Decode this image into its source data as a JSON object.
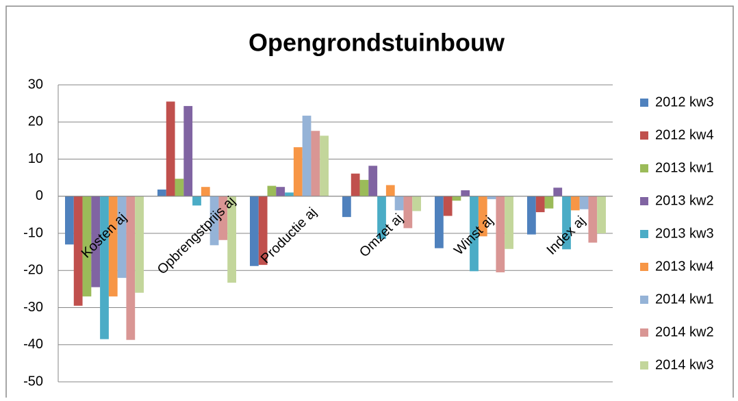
{
  "chart_data": {
    "type": "bar",
    "title": "Opengrondstuinbouw",
    "categories": [
      "Kosten aj",
      "Opbrengstprijs aj",
      "Productie aj",
      "Omzet aj",
      "Winst aj",
      "Index aj"
    ],
    "series": [
      {
        "name": "2012 kw3",
        "color": "#4f81bd",
        "values": [
          -13,
          1.8,
          -18.8,
          -5.6,
          -14,
          -10.3
        ]
      },
      {
        "name": "2012 kw4",
        "color": "#c0504d",
        "values": [
          -29.5,
          25.5,
          -18.5,
          6.1,
          -5.3,
          -4.3
        ]
      },
      {
        "name": "2013 kw1",
        "color": "#9bbb59",
        "values": [
          -27,
          4.7,
          2.8,
          4.4,
          -1.2,
          -3.3
        ]
      },
      {
        "name": "2013 kw2",
        "color": "#8064a2",
        "values": [
          -24.5,
          24.3,
          2.5,
          8.2,
          1.6,
          2.3
        ]
      },
      {
        "name": "2013 kw3",
        "color": "#4bacc6",
        "values": [
          -38.5,
          -2.5,
          1,
          -11.5,
          -20.2,
          -14.3
        ]
      },
      {
        "name": "2013 kw4",
        "color": "#f79646",
        "values": [
          -27,
          2.5,
          13.2,
          3,
          -10.8,
          -3.8
        ]
      },
      {
        "name": "2014 kw1",
        "color": "#95b3d7",
        "values": [
          -22,
          -13.2,
          21.7,
          -3.8,
          -0.8,
          -3.5
        ]
      },
      {
        "name": "2014 kw2",
        "color": "#d99694",
        "values": [
          -38.7,
          -11.8,
          17.6,
          -8.6,
          -20.5,
          -12.5
        ]
      },
      {
        "name": "2014 kw3",
        "color": "#c3d69b",
        "values": [
          -26,
          -23.3,
          16.3,
          -4,
          -14.2,
          -10
        ]
      }
    ],
    "ylim": [
      -50,
      30
    ],
    "yticks": [
      -50,
      -40,
      -30,
      -20,
      -10,
      0,
      10,
      20,
      30
    ],
    "grid": true,
    "legend": "right"
  }
}
